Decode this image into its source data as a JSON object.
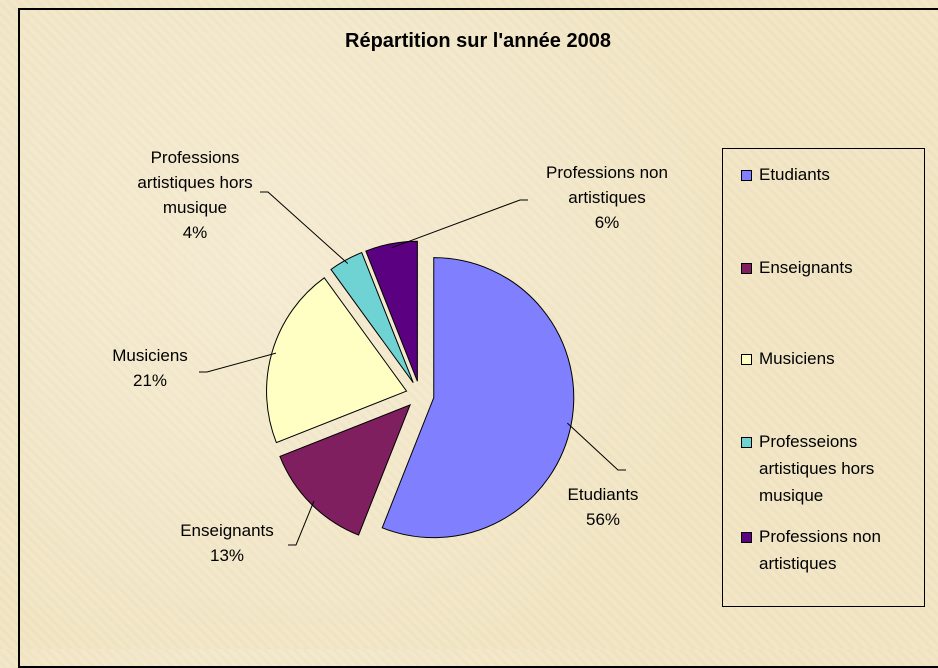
{
  "chart_data": {
    "type": "pie",
    "title": "Répartition sur l'année 2008",
    "categories": [
      "Etudiants",
      "Enseignants",
      "Musiciens",
      "Professeions artistiques hors musique",
      "Professions non artistiques"
    ],
    "labels": [
      "Etudiants",
      "Enseignants",
      "Musiciens",
      "Professions artistiques hors musique",
      "Professions non artistiques"
    ],
    "values": [
      56,
      13,
      21,
      4,
      6
    ],
    "value_labels": [
      "56%",
      "13%",
      "21%",
      "4%",
      "6%"
    ],
    "colors": [
      "#8080ff",
      "#7f1f5f",
      "#ffffc4",
      "#6fd3d3",
      "#5a0080"
    ],
    "legend": "right"
  }
}
